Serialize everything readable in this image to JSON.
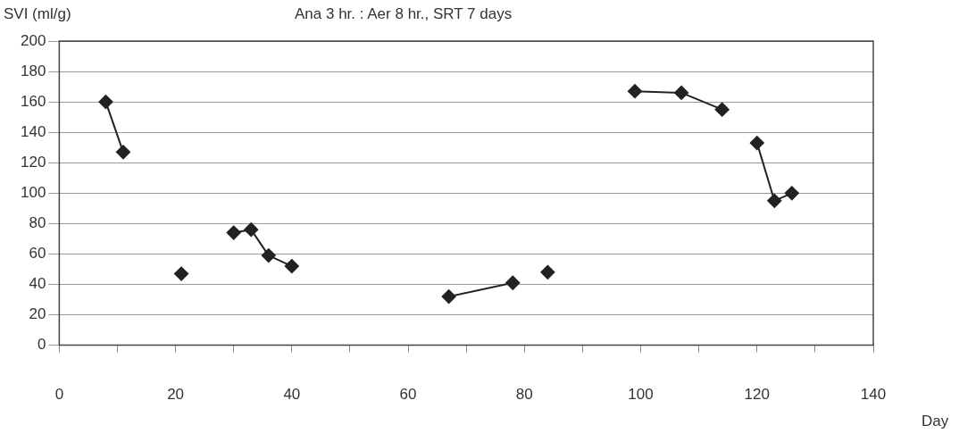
{
  "chart_data": {
    "type": "line",
    "title": "Ana 3 hr. : Aer 8 hr.,  SRT 7  days",
    "ylabel": "SVI (ml/g)",
    "xlabel": "Day",
    "series": [
      {
        "color": "#222222",
        "x": [
          8,
          11
        ],
        "values": [
          160,
          127
        ]
      },
      {
        "color": "#222222",
        "type": "scatter",
        "x": [
          21
        ],
        "values": [
          47
        ]
      },
      {
        "color": "#222222",
        "x": [
          30,
          33,
          36,
          40
        ],
        "values": [
          74,
          76,
          59,
          52
        ]
      },
      {
        "color": "#222222",
        "x": [
          67,
          78
        ],
        "values": [
          32,
          41
        ]
      },
      {
        "color": "#222222",
        "type": "scatter",
        "x": [
          84
        ],
        "values": [
          48
        ]
      },
      {
        "color": "#222222",
        "x": [
          99,
          107,
          114
        ],
        "values": [
          167,
          166,
          155
        ]
      },
      {
        "color": "#222222",
        "x": [
          120,
          123,
          126
        ],
        "values": [
          133,
          95,
          100
        ]
      }
    ],
    "xlim": [
      0,
      140
    ],
    "xticks": [
      0,
      {
        "value": 10,
        "label": null
      },
      20,
      {
        "value": 30,
        "label": null
      },
      40,
      {
        "value": 50,
        "label": null
      },
      60,
      {
        "value": 70,
        "label": null
      },
      80,
      {
        "value": 90,
        "label": null
      },
      100,
      {
        "value": 110,
        "label": null
      },
      120,
      {
        "value": 130,
        "label": null
      },
      140
    ],
    "ylim": [
      0,
      200
    ],
    "yticks": [
      0,
      20,
      40,
      60,
      80,
      100,
      120,
      140,
      160,
      180,
      200
    ],
    "grid": "y",
    "legend": false,
    "marker": "diamond",
    "line_style": "solid"
  }
}
